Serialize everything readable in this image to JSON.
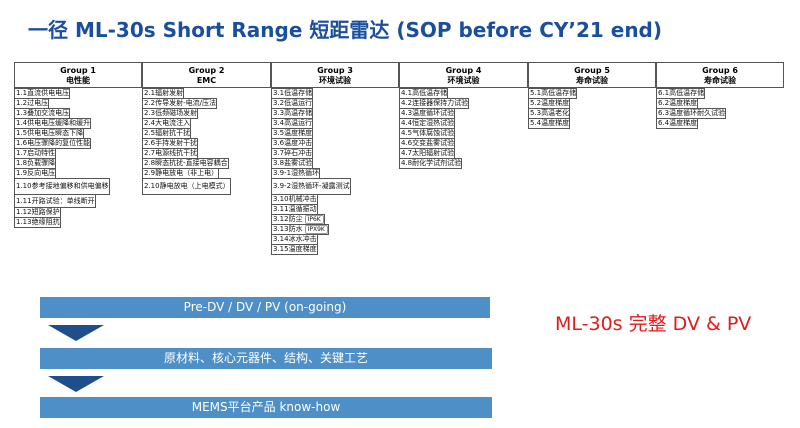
{
  "title": "一径 ML-30s Short Range 短距雷达 (SOP before CY’21 end)",
  "groups": [
    {
      "name": "Group 1",
      "sub": "电性能",
      "items": [
        "1.1直流供电电压",
        "1.2过电压",
        "1.3叠加交流电压",
        "1.4供电电压缓降和缓升",
        "1.5供电电压瞬态下降",
        "1.6电压骤降的复位性能",
        "1.7启动特性",
        "1.8负载骤降",
        "1.9反向电压",
        "1.10参考接地偏移和供电偏移",
        "1.11开路试验：单线断开",
        "1.12短路保护",
        "1.13绝缘阻抗"
      ]
    },
    {
      "name": "Group 2",
      "sub": "EMC",
      "items": [
        "2.1辐射发射",
        "2.2传导发射-电流/压法",
        "2.3低频磁场发射",
        "2.4大电流注入",
        "2.5辐射抗干扰",
        "2.6手持发射干扰",
        "2.7电源线抗干扰",
        "2.8瞬态抗扰-直接电容耦合",
        "2.9静电放电（非上电）",
        "2.10静电放电（上电模式）"
      ]
    },
    {
      "name": "Group 3",
      "sub": "环境试验",
      "items": [
        "3.1低温存储",
        "3.2低温运行",
        "3.3高温存储",
        "3.4高温运行",
        "3.5温度梯度",
        "3.6温度冲击",
        "3.7碎石冲击",
        "3.8盐雾试验",
        "3.9-1湿热循环",
        "3.9-2湿热循环-凝露测试",
        "3.10机械冲击",
        "3.11温循振动",
        "3.12防尘",
        "3.13防水",
        "3.14冰水冲击",
        "3.15温度梯度"
      ],
      "tags": {
        "3.12防尘": "IP6K",
        "3.13防水": "IPX9K"
      }
    },
    {
      "name": "Group 4",
      "sub": "环境试验",
      "items": [
        "4.1高低温存储",
        "4.2连接器保持力试验",
        "4.3温度循环试验",
        "4.4恒定湿热试验",
        "4.5气体腐蚀试验",
        "4.6交变盐雾试验",
        "4.7太阳辐射试验",
        "4.8耐化学试剂试验"
      ]
    },
    {
      "name": "Group 5",
      "sub": "寿命试验",
      "items": [
        "5.1高低温存储",
        "5.2温度梯度",
        "5.3高温老化",
        "5.4温度梯度"
      ]
    },
    {
      "name": "Group 6",
      "sub": "寿命试验",
      "items": [
        "6.1高低温存储",
        "6.2温度梯度",
        "6.3温度循环耐久试验",
        "6.4温度梯度"
      ]
    }
  ],
  "flow": {
    "step1": "Pre-DV / DV / PV (on-going)",
    "step2": "原材料、核心元器件、结构、关键工艺",
    "step3": "MEMS平台产品 know-how"
  },
  "side_note": "ML-30s 完整 DV & PV",
  "colors": {
    "title": "#1b4e9b",
    "bar": "#4e8fc7",
    "arrow": "#1f4e8c",
    "note": "#e11b1b"
  }
}
